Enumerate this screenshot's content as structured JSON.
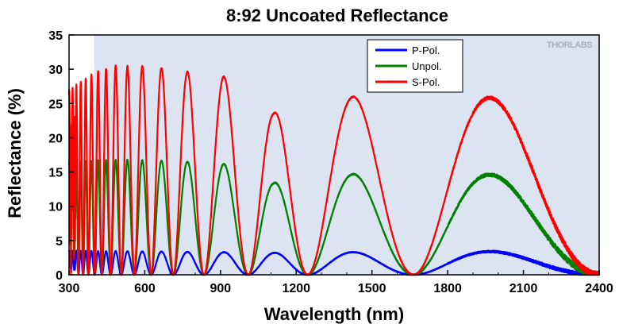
{
  "chart_data": {
    "type": "line",
    "title": "8:92 Uncoated Reflectance",
    "xlabel": "Wavelength (nm)",
    "ylabel": "Reflectance (%)",
    "xlim": [
      300,
      2400
    ],
    "ylim": [
      0,
      35
    ],
    "xticks": [
      300,
      600,
      900,
      1200,
      1500,
      1800,
      2100,
      2400
    ],
    "yticks": [
      0,
      5,
      10,
      15,
      20,
      25,
      30,
      35
    ],
    "grid": false,
    "legend_position": "top-right",
    "watermark": "THORLABS",
    "shaded_region": {
      "x_start": 400,
      "x_end": 2400,
      "color": "#dce4f2"
    },
    "series": [
      {
        "name": "P-Pol.",
        "color": "#0000ff",
        "peak_envelope": [
          [
            300,
            3.5
          ],
          [
            600,
            3.4
          ],
          [
            900,
            3.3
          ],
          [
            1100,
            3.2
          ],
          [
            1430,
            3.3
          ],
          [
            2000,
            3.4
          ]
        ]
      },
      {
        "name": "Unpol.",
        "color": "#008000",
        "peak_envelope": [
          [
            300,
            16.5
          ],
          [
            500,
            16.8
          ],
          [
            700,
            16.6
          ],
          [
            910,
            16.2
          ],
          [
            1110,
            13.4
          ],
          [
            1430,
            14.7
          ],
          [
            2000,
            14.6
          ]
        ]
      },
      {
        "name": "S-Pol.",
        "color": "#ff0000",
        "peak_envelope": [
          [
            300,
            27.0
          ],
          [
            400,
            29.5
          ],
          [
            480,
            30.5
          ],
          [
            600,
            30.4
          ],
          [
            680,
            30.1
          ],
          [
            770,
            29.6
          ],
          [
            910,
            29.0
          ],
          [
            1110,
            23.6
          ],
          [
            1430,
            26.0
          ],
          [
            2000,
            25.8
          ]
        ]
      }
    ],
    "fringe_minima_nm": [
      835,
      1010,
      1245,
      1665,
      2400
    ]
  }
}
